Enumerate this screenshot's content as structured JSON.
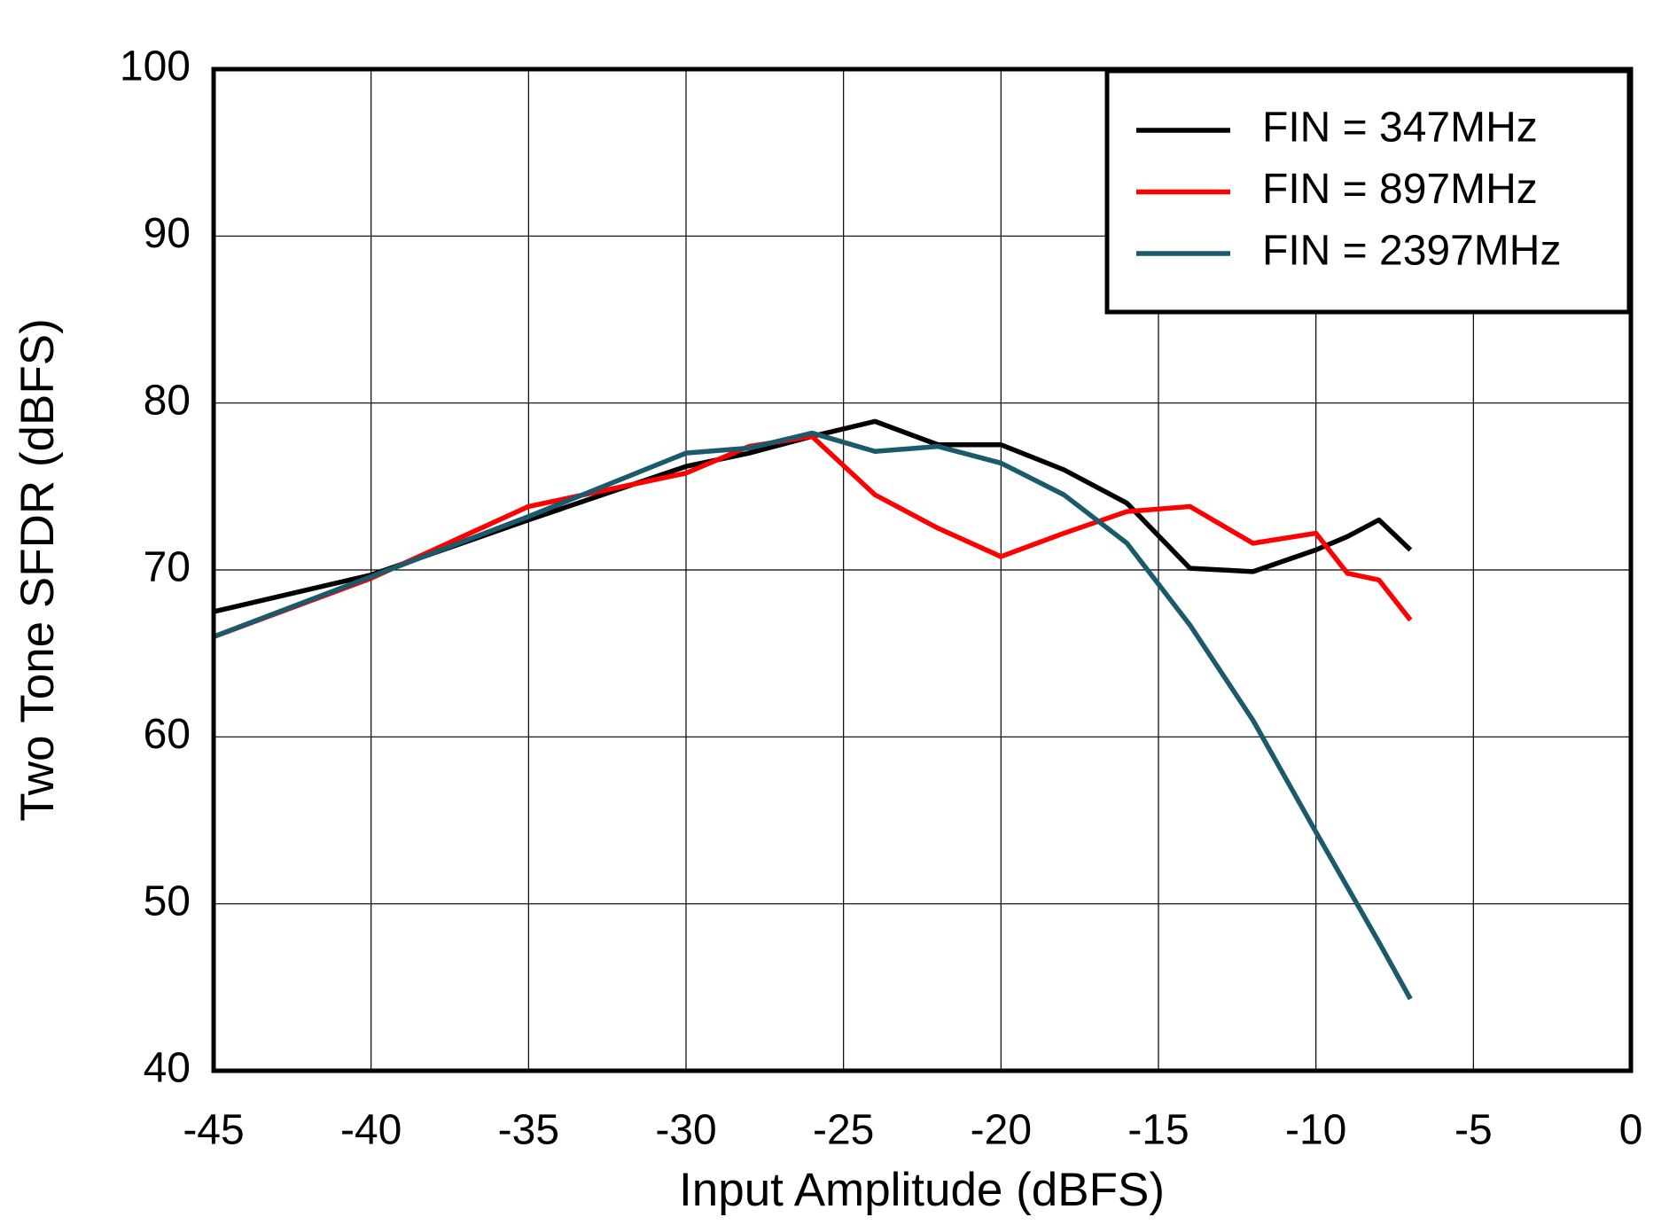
{
  "chart_data": {
    "type": "line",
    "xlabel": "Input Amplitude (dBFS)",
    "ylabel": "Two Tone SFDR  (dBFS)",
    "x": [
      -45,
      -40,
      -35,
      -30,
      -28,
      -26,
      -24,
      -22,
      -20,
      -18,
      -16,
      -14,
      -12,
      -10,
      -9,
      -8,
      -7
    ],
    "series": [
      {
        "name": "FIN = 347MHz",
        "color": "#000000",
        "values": [
          67.5,
          69.7,
          73,
          76.2,
          77,
          78,
          78.9,
          77.5,
          77.5,
          76,
          74,
          70.1,
          69.9,
          71.2,
          72,
          73,
          71.2
        ]
      },
      {
        "name": "FIN = 897MHz",
        "color": "#ff0000",
        "values": [
          66,
          69.5,
          73.8,
          75.8,
          77.4,
          78,
          74.5,
          72.5,
          70.8,
          72.2,
          73.5,
          73.8,
          71.6,
          72.2,
          69.8,
          69.4,
          67
        ]
      },
      {
        "name": "FIN = 2397MHz",
        "color": "#1a5a6a",
        "values": [
          66,
          69.6,
          73.2,
          77,
          77.3,
          78.2,
          77.1,
          77.4,
          76.4,
          74.5,
          71.6,
          66.7,
          61,
          54.3,
          51,
          47.7,
          44.3
        ]
      }
    ],
    "xlim": [
      -45,
      0
    ],
    "xticks": [
      -45,
      -40,
      -35,
      -30,
      -25,
      -20,
      -15,
      -10,
      -5,
      0
    ],
    "ylim": [
      40,
      100
    ],
    "yticks": [
      40,
      50,
      60,
      70,
      80,
      90,
      100
    ],
    "grid": true,
    "legend": "upper right"
  }
}
